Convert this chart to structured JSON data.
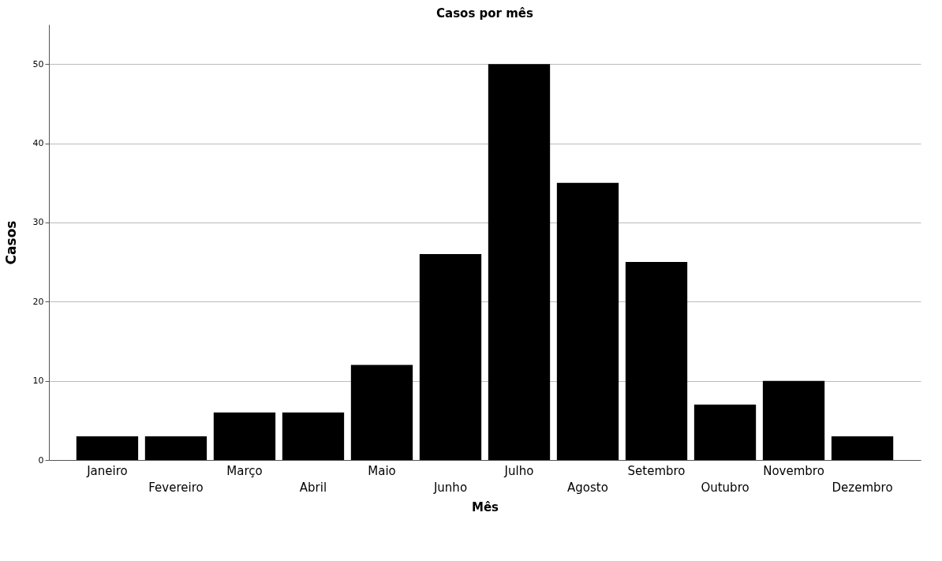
{
  "chart_data": {
    "type": "bar",
    "title": "Casos por mês",
    "xlabel": "Mês",
    "ylabel": "Casos",
    "categories": [
      "Janeiro",
      "Fevereiro",
      "Março",
      "Abril",
      "Maio",
      "Junho",
      "Julho",
      "Agosto",
      "Setembro",
      "Outubro",
      "Novembro",
      "Dezembro"
    ],
    "values": [
      3,
      3,
      6,
      6,
      12,
      26,
      50,
      35,
      25,
      7,
      10,
      3
    ],
    "color": "#000000",
    "ylim": [
      0,
      55
    ],
    "yticks": [
      0,
      10,
      20,
      30,
      40,
      50
    ],
    "grid": "y"
  }
}
